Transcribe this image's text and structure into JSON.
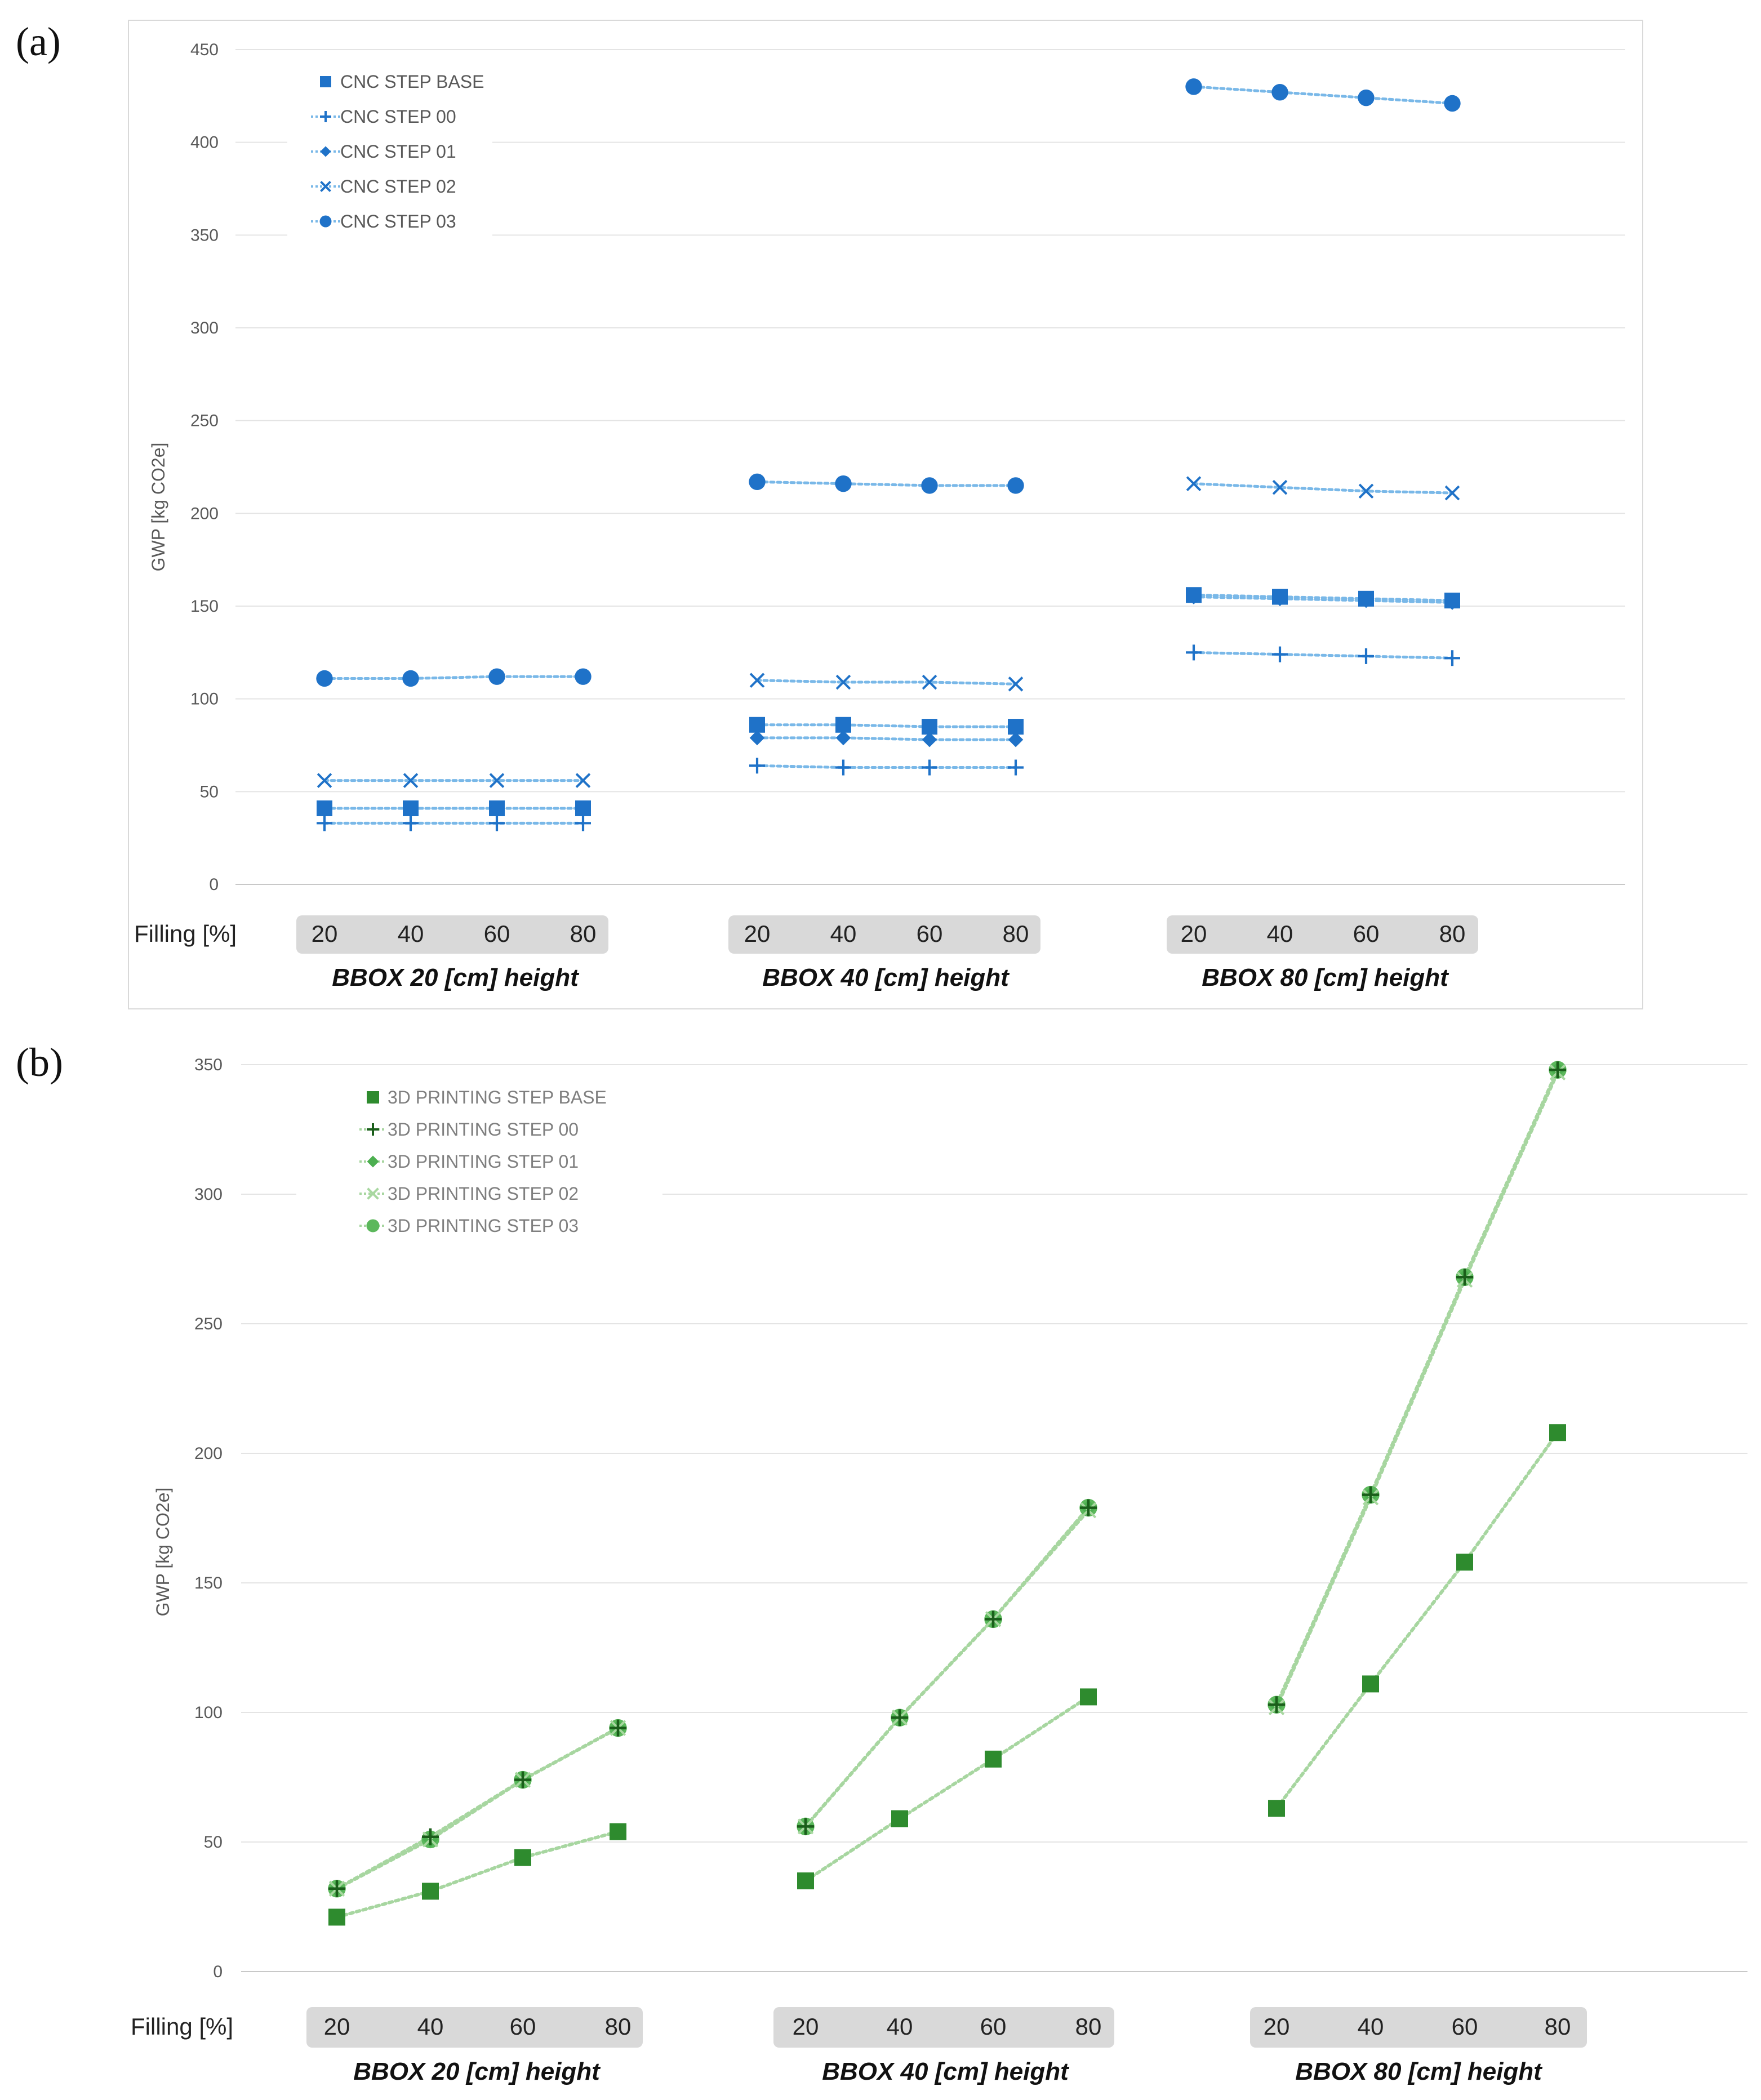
{
  "chart_data": [
    {
      "panel_label": "(a)",
      "type": "scatter",
      "ylabel": "GWP [kg CO2e]",
      "ylim": [
        0,
        450
      ],
      "yticks": [
        "0",
        "50",
        "100",
        "150",
        "200",
        "250",
        "300",
        "350",
        "400",
        "450"
      ],
      "filling_label": "Filling [%]",
      "groups": [
        "BBOX 20 [cm] height",
        "BBOX 40 [cm] height",
        "BBOX 80 [cm] height"
      ],
      "categories": [
        "20",
        "40",
        "60",
        "80"
      ],
      "grid": true,
      "legend_position": "top-left",
      "accent_color": "#1f72c8",
      "series": [
        {
          "name": "CNC STEP BASE",
          "marker": "square",
          "values": [
            [
              41,
              41,
              41,
              41
            ],
            [
              86,
              86,
              85,
              85
            ],
            [
              156,
              155,
              154,
              153
            ]
          ]
        },
        {
          "name": "CNC STEP 00",
          "marker": "plus",
          "values": [
            [
              33,
              33,
              33,
              33
            ],
            [
              64,
              63,
              63,
              63
            ],
            [
              125,
              124,
              123,
              122
            ]
          ]
        },
        {
          "name": "CNC STEP 01",
          "marker": "diamond",
          "values": [
            [
              41,
              41,
              41,
              41
            ],
            [
              79,
              79,
              78,
              78
            ],
            [
              155,
              154,
              153,
              152
            ]
          ]
        },
        {
          "name": "CNC STEP 02",
          "marker": "x",
          "values": [
            [
              56,
              56,
              56,
              56
            ],
            [
              110,
              109,
              109,
              108
            ],
            [
              216,
              214,
              212,
              211
            ]
          ]
        },
        {
          "name": "CNC STEP 03",
          "marker": "circle",
          "values": [
            [
              111,
              111,
              112,
              112
            ],
            [
              217,
              216,
              215,
              215
            ],
            [
              430,
              427,
              424,
              421
            ]
          ]
        }
      ]
    },
    {
      "panel_label": "(b)",
      "type": "line",
      "ylabel": "GWP [kg CO2e]",
      "ylim": [
        0,
        350
      ],
      "yticks": [
        "0",
        "50",
        "100",
        "150",
        "200",
        "250",
        "300",
        "350"
      ],
      "filling_label": "Filling [%]",
      "groups": [
        "BBOX 20 [cm] height",
        "BBOX 40 [cm] height",
        "BBOX 80 [cm] height"
      ],
      "categories": [
        "20",
        "40",
        "60",
        "80"
      ],
      "grid": true,
      "legend_position": "top-left",
      "accent_color": "#2e8b2e",
      "series": [
        {
          "name": "3D PRINTING STEP BASE",
          "marker": "square",
          "values": [
            [
              21,
              31,
              44,
              54
            ],
            [
              35,
              59,
              82,
              106
            ],
            [
              63,
              111,
              158,
              208
            ]
          ]
        },
        {
          "name": "3D PRINTING STEP 00",
          "marker": "plus",
          "values": [
            [
              32,
              52,
              74,
              94
            ],
            [
              56,
              98,
              136,
              179
            ],
            [
              103,
              184,
              268,
              348
            ]
          ]
        },
        {
          "name": "3D PRINTING STEP 01",
          "marker": "diamond",
          "values": [
            [
              32,
              51,
              74,
              94
            ],
            [
              56,
              98,
              136,
              179
            ],
            [
              103,
              184,
              268,
              348
            ]
          ]
        },
        {
          "name": "3D PRINTING STEP 02",
          "marker": "x",
          "values": [
            [
              32,
              51,
              74,
              94
            ],
            [
              56,
              98,
              136,
              178
            ],
            [
              102,
              183,
              267,
              347
            ]
          ]
        },
        {
          "name": "3D PRINTING STEP 03",
          "marker": "circle",
          "values": [
            [
              32,
              51,
              74,
              94
            ],
            [
              56,
              98,
              136,
              179
            ],
            [
              103,
              184,
              268,
              348
            ]
          ]
        }
      ]
    }
  ]
}
